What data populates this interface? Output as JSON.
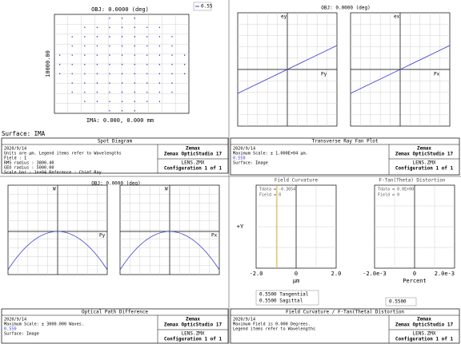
{
  "spot_diagram": {
    "header": "OBJ: 0.0000 (deg)",
    "y_label": "10000.00",
    "footer": "IMA: 0.000, 0.000 mm",
    "surface": "Surface: IMA",
    "info": {
      "title": "Spot Diagram",
      "lines": [
        "2020/9/14",
        "Units are µm. Legend items refer to Wavelengths",
        "Field      : 1",
        "RMS radius : 3800.40",
        "GEO radius : 5000.00",
        "Scale bar  : 1e+04      Reference  : Chief Ray"
      ],
      "company": "Zemax",
      "product": "Zemax OpticStudio 17",
      "file": "LENS.ZMX",
      "config": "Configuration 1 of 1"
    }
  },
  "ray_fan": {
    "legend": "0.55",
    "header": "OBJ: 0.0000 (deg)",
    "left_y": "ey",
    "left_x": "Py",
    "right_y": "ex",
    "right_x": "Px",
    "info": {
      "title": "Transverse Ray Fan Plot",
      "lines": [
        "2020/9/14",
        "Maximum Scale: ± 1.000E+04 µm.",
        "0.550",
        "Surface: Image"
      ],
      "company": "Zemax",
      "product": "Zemax OpticStudio 17",
      "file": "LENS.ZMX",
      "config": "Configuration 1 of 1"
    }
  },
  "opd": {
    "header": "OBJ: 0.0000 (deg)",
    "left_y": "W",
    "left_x": "Py",
    "right_y": "W",
    "right_x": "Px",
    "info": {
      "title": "Optical Path Difference",
      "lines": [
        "2020/9/14",
        "Maximum Scale: ± 3000.000 Waves.",
        "0.550",
        "Surface: Image"
      ],
      "company": "Zemax",
      "product": "Zemax OpticStudio 17",
      "file": "LENS.ZMX",
      "config": "Configuration 1 of 1"
    }
  },
  "field_curvature": {
    "left_title": "Field Curvature",
    "right_title": "F-Tan(Theta) Distortion",
    "y_label": "+Y",
    "left_notes": [
      "Tdata = -0.3054",
      "Field = 0"
    ],
    "right_notes": [
      "Tdata = 0.0E+00",
      "Field = 0"
    ],
    "left_ticks": [
      "-2.0",
      "0",
      "2.0"
    ],
    "left_unit": "µm",
    "right_ticks": [
      "-2.0e-3",
      "0",
      "2.0e-3"
    ],
    "right_unit": "Percent",
    "legend_left": [
      "0.5500 Tangential",
      "0.5500 Sagittal"
    ],
    "legend_right": "0.5500",
    "info": {
      "title": "Field Curvature / F-Tan(Theta) Distortion",
      "lines": [
        "2020/9/14",
        "Maximum Field is 0.000 Degrees.",
        "Legend items refer to Wavelengths"
      ],
      "company": "Zemax",
      "product": "Zemax OpticStudio 17",
      "file": "LENS.ZMX",
      "config": "Configuration 1 of 1"
    }
  }
}
